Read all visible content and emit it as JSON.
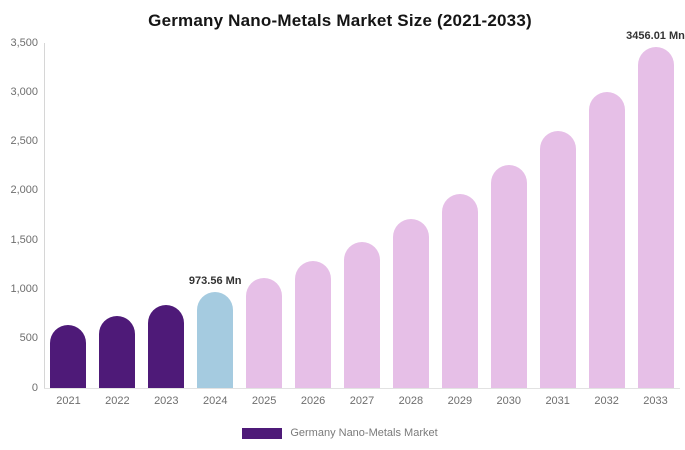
{
  "title": "Germany Nano-Metals Market Size (2021-2033)",
  "chart_data": {
    "type": "bar",
    "title": "Germany Nano-Metals Market Size (2021-2033)",
    "categories": [
      "2021",
      "2022",
      "2023",
      "2024",
      "2025",
      "2026",
      "2027",
      "2028",
      "2029",
      "2030",
      "2031",
      "2032",
      "2033"
    ],
    "values": [
      638.2,
      734.7,
      845.7,
      973.56,
      1120.7,
      1290.1,
      1485.1,
      1709.6,
      1968.0,
      2265.5,
      2607.9,
      3002.1,
      3456.01
    ],
    "unit": "Mn",
    "xlabel": "",
    "ylabel": "",
    "ylim": [
      0,
      3500
    ],
    "grid": false,
    "yticks": [
      {
        "value": 0,
        "label": "0"
      },
      {
        "value": 500,
        "label": "500"
      },
      {
        "value": 1000,
        "label": "1,000"
      },
      {
        "value": 1500,
        "label": "1,500"
      },
      {
        "value": 2000,
        "label": "2,000"
      },
      {
        "value": 2500,
        "label": "2,500"
      },
      {
        "value": 3000,
        "label": "3,000"
      },
      {
        "value": 3500,
        "label": "3,500"
      }
    ],
    "data_labels": [
      {
        "index": 3,
        "text": "973.56 Mn"
      },
      {
        "index": 12,
        "text": "3456.01 Mn"
      }
    ],
    "bar_colors": [
      "#4E1A78",
      "#4E1A78",
      "#4E1A78",
      "#A5CBE0",
      "#E6BFE7",
      "#E6BFE7",
      "#E6BFE7",
      "#E6BFE7",
      "#E6BFE7",
      "#E6BFE7",
      "#E6BFE7",
      "#E6BFE7",
      "#E6BFE7"
    ],
    "legend": {
      "position": "bottom",
      "entries": [
        {
          "label": "Germany Nano-Metals Market",
          "color": "#4E1A78"
        }
      ]
    }
  },
  "colors": {
    "purple": "#4E1A78",
    "light_blue": "#A5CBE0",
    "pink": "#E6BFE7",
    "title_text": "#151515",
    "axis_text": "#6e6e6e",
    "value_label_text": "#333333",
    "legend_text": "#7a7a7a",
    "axis_line": "#d6d6d6",
    "background": "#ffffff"
  }
}
